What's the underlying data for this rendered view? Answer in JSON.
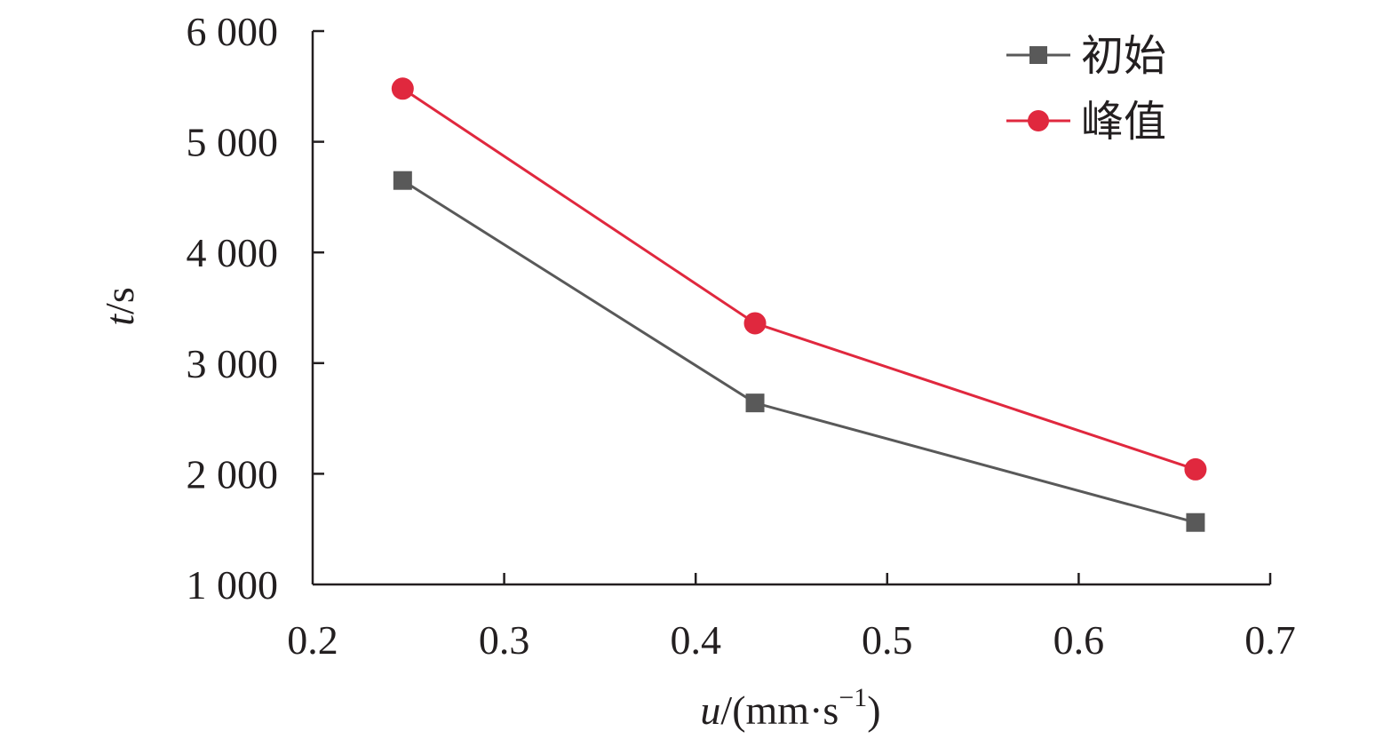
{
  "chart_data": {
    "type": "line",
    "x_label_var": "u",
    "x_label_unit": "/(mm·s",
    "x_label_exp": "−1",
    "x_label_close": ")",
    "y_label_var": "t",
    "y_label_unit": "/s",
    "xlim": [
      0.2,
      0.7
    ],
    "ylim": [
      1000,
      6000
    ],
    "x_ticks": [
      "0.2",
      "0.3",
      "0.4",
      "0.5",
      "0.6",
      "0.7"
    ],
    "y_ticks": [
      "1 000",
      "2 000",
      "3 000",
      "4 000",
      "5 000",
      "6 000"
    ],
    "x_tick_values": [
      0.2,
      0.3,
      0.4,
      0.5,
      0.6,
      0.7
    ],
    "y_tick_values": [
      1000,
      2000,
      3000,
      4000,
      5000,
      6000
    ],
    "legend_position": "top-right",
    "grid": false,
    "series": [
      {
        "name": "初始",
        "marker": "square",
        "color": "#595959",
        "x": [
          0.247,
          0.431,
          0.661
        ],
        "y": [
          4650,
          2640,
          1560
        ]
      },
      {
        "name": "峰值",
        "marker": "circle",
        "color": "#e0283e",
        "x": [
          0.247,
          0.431,
          0.661
        ],
        "y": [
          5480,
          3360,
          2040
        ]
      }
    ]
  }
}
